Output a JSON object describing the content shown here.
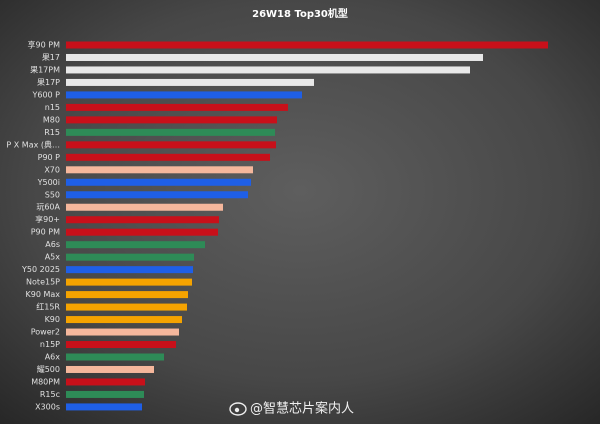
{
  "chart_data": {
    "type": "bar",
    "orientation": "horizontal",
    "title": "26W18 Top30机型",
    "watermark": "@智慧芯片案内人",
    "categories": [
      "享90 PM",
      "果17",
      "果17PM",
      "果17P",
      "Y600 P",
      "n15",
      "M80",
      "R15",
      "P X Max (典…",
      "P90 P",
      "X70",
      "Y500i",
      "S50",
      "玩60A",
      "享90+",
      "P90 PM",
      "A6s",
      "A5x",
      "Y50 2025",
      "Note15P",
      "K90 Max",
      "红15R",
      "K90",
      "Power2",
      "n15P",
      "A6x",
      "耀500",
      "M80PM",
      "R15c",
      "X300s"
    ],
    "values": [
      482,
      417,
      404,
      248,
      236,
      222,
      211,
      209,
      210,
      204,
      187,
      185,
      182,
      157,
      153,
      152,
      139,
      128,
      127,
      126,
      122,
      121,
      116,
      113,
      110,
      98,
      88,
      79,
      78,
      76
    ],
    "colors": [
      "#c8101a",
      "#e8e8e8",
      "#e8e8e8",
      "#e8e8e8",
      "#1f5fe6",
      "#c8101a",
      "#c8101a",
      "#2e8b57",
      "#c8101a",
      "#c8101a",
      "#f5b79c",
      "#1f5fe6",
      "#1f5fe6",
      "#f5b79c",
      "#c8101a",
      "#c8101a",
      "#2e8b57",
      "#2e8b57",
      "#1f5fe6",
      "#f5a300",
      "#f5a300",
      "#f5a300",
      "#f5a300",
      "#f5b79c",
      "#c8101a",
      "#2e8b57",
      "#f5b79c",
      "#c8101a",
      "#2e8b57",
      "#1f5fe6"
    ]
  }
}
